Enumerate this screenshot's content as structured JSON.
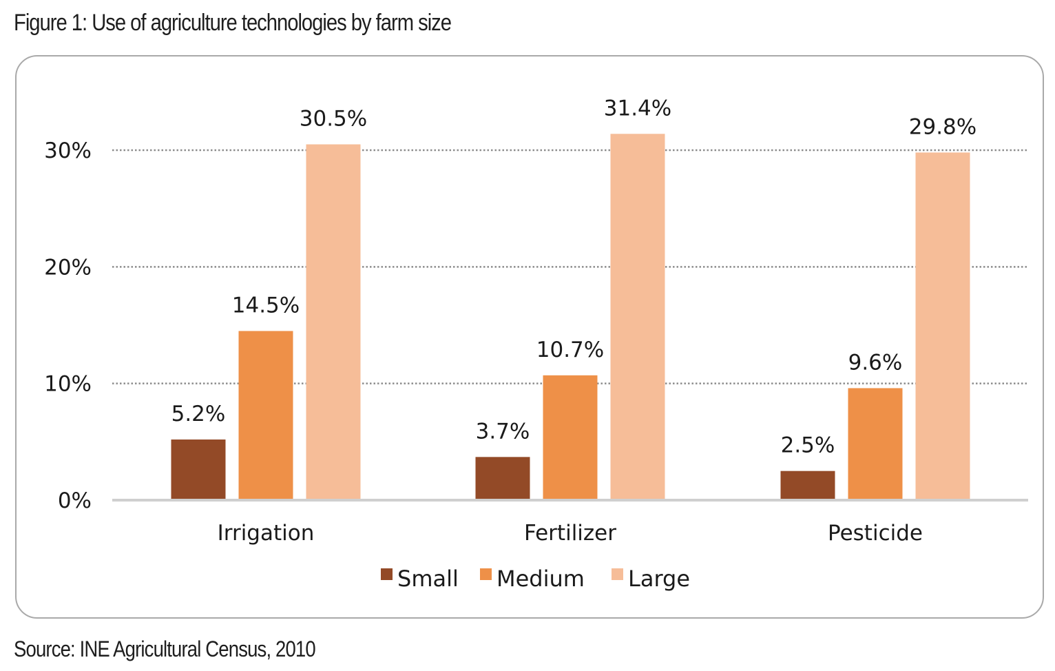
{
  "figure_title": "Figure 1: Use of agriculture technologies by farm size",
  "source_note": "Source: INE Agricultural Census, 2010",
  "chart_data": {
    "type": "bar",
    "title": "",
    "xlabel": "",
    "ylabel": "",
    "categories": [
      "Irrigation",
      "Fertilizer",
      "Pesticide"
    ],
    "series": [
      {
        "name": "Small",
        "color": "#934A27",
        "values": [
          5.2,
          3.7,
          2.5
        ],
        "labels": [
          "5.2%",
          "3.7%",
          "2.5%"
        ]
      },
      {
        "name": "Medium",
        "color": "#EE9048",
        "values": [
          14.5,
          10.7,
          9.6
        ],
        "labels": [
          "14.5%",
          "10.7%",
          "9.6%"
        ]
      },
      {
        "name": "Large",
        "color": "#F6BD98",
        "values": [
          30.5,
          31.4,
          29.8
        ],
        "labels": [
          "30.5%",
          "31.4%",
          "29.8%"
        ]
      }
    ],
    "ylim": [
      0,
      30
    ],
    "yticks": [
      0,
      10,
      20,
      30
    ],
    "ytick_labels": [
      "0%",
      "10%",
      "20%",
      "30%"
    ],
    "grid": "dotted horizontal",
    "legend_position": "bottom"
  }
}
